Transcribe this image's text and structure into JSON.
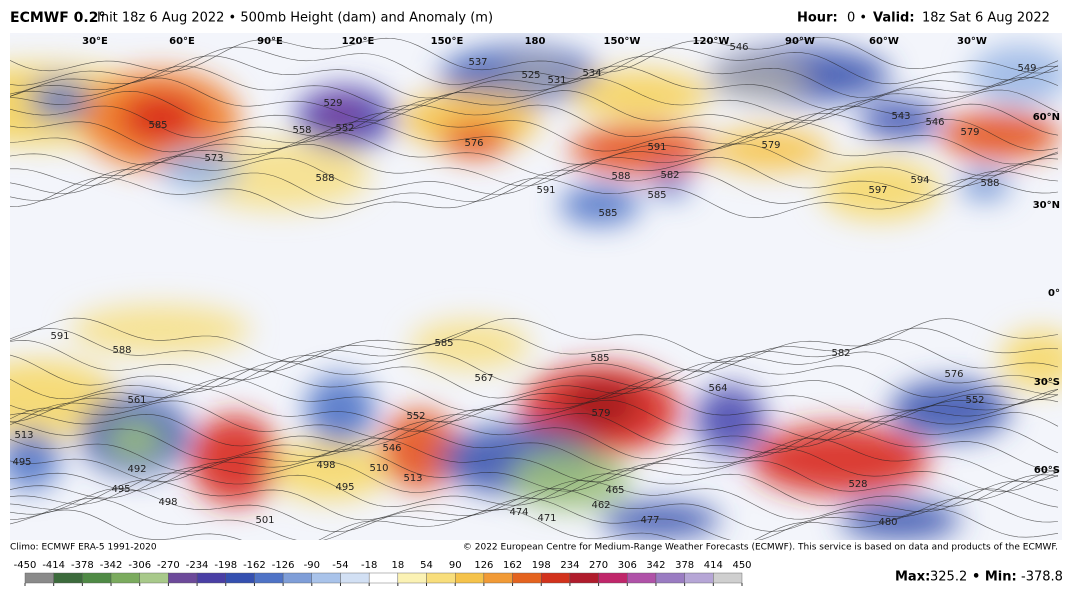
{
  "header": {
    "model": "ECMWF 0.2°",
    "title": "Init 18z 6 Aug 2022 • 500mb Height (dam) and Anomaly (m)",
    "hour_label": "Hour:",
    "hour": "0 •",
    "valid_label": "Valid:",
    "valid": "18z Sat 6 Aug 2022"
  },
  "lon_labels": [
    "30°E",
    "60°E",
    "90°E",
    "120°E",
    "150°E",
    "180",
    "150°W",
    "120°W",
    "90°W",
    "60°W",
    "30°W"
  ],
  "lat_labels": [
    "60°N",
    "30°N",
    "0°",
    "30°S",
    "60°S"
  ],
  "contour_labels": [
    585,
    529,
    552,
    558,
    525,
    531,
    534,
    537,
    576,
    588,
    573,
    591,
    588,
    582,
    585,
    585,
    591,
    579,
    597,
    594,
    588,
    546,
    549,
    543,
    546,
    579,
    561,
    492,
    495,
    498,
    501,
    495,
    498,
    552,
    585,
    579,
    582,
    576,
    552,
    528,
    480,
    477,
    471,
    462,
    465,
    474,
    513,
    495,
    591,
    588,
    546,
    513,
    510,
    567,
    564,
    585
  ],
  "footer": {
    "climo": "Climo: ECMWF ERA-5 1991-2020",
    "copyright": "© 2022 European Centre for Medium-Range Weather Forecasts (ECMWF). This service is based on data and products of the ECMWF."
  },
  "colorbar_ticks": [
    -450,
    -414,
    -378,
    -342,
    -306,
    -270,
    -234,
    -198,
    -162,
    -126,
    -90,
    -54,
    -18,
    18,
    54,
    90,
    126,
    162,
    198,
    234,
    270,
    306,
    342,
    378,
    414,
    450
  ],
  "stats": {
    "max_label": "Max:",
    "max": 325.2,
    "min_label": "• Min:",
    "min": -378.8
  }
}
